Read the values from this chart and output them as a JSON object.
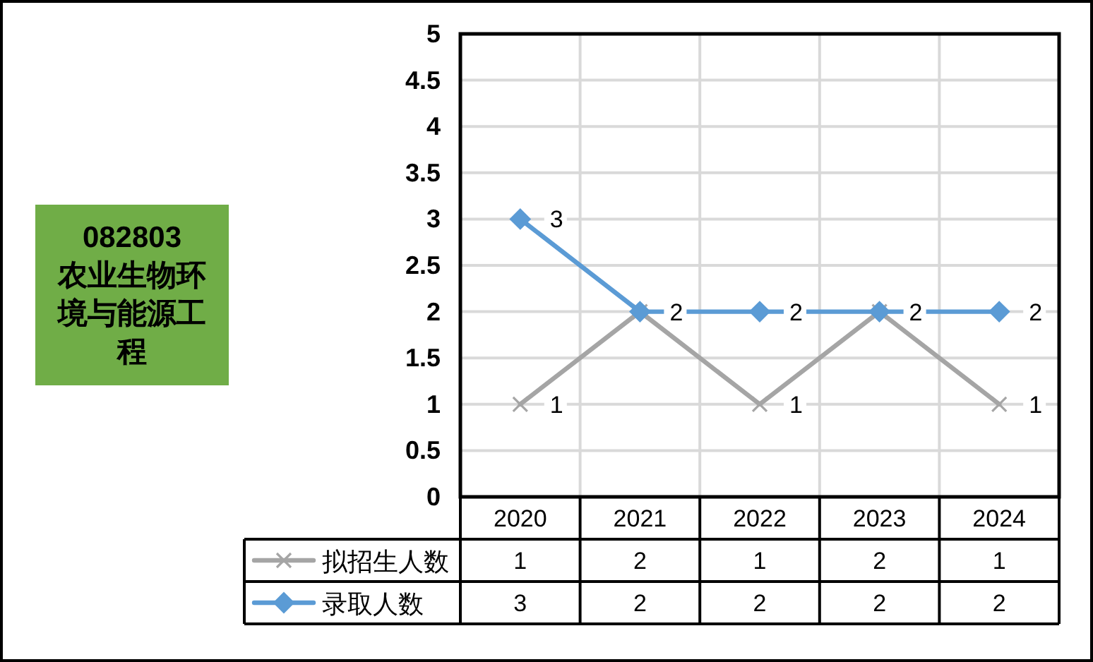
{
  "chart_data": {
    "type": "line",
    "title": "082803",
    "subtitle": "农业生物环境与能源工程",
    "categories": [
      "2020",
      "2021",
      "2022",
      "2023",
      "2024"
    ],
    "series": [
      {
        "name": "拟招生人数",
        "color": "#a5a5a5",
        "marker": "cross",
        "values": [
          1,
          2,
          1,
          2,
          1
        ]
      },
      {
        "name": "录取人数",
        "color": "#5b9bd5",
        "marker": "diamond",
        "values": [
          3,
          2,
          2,
          2,
          2
        ]
      }
    ],
    "ylim": [
      0,
      5
    ],
    "yticks": [
      0,
      0.5,
      1,
      1.5,
      2,
      2.5,
      3,
      3.5,
      4,
      4.5,
      5
    ],
    "annotations": [
      {
        "text": "1",
        "x": "2020",
        "y": 1
      },
      {
        "text": "1",
        "x": "2022",
        "y": 1
      },
      {
        "text": "1",
        "x": "2024",
        "y": 1
      },
      {
        "text": "3",
        "x": "2020",
        "y": 3
      },
      {
        "text": "2",
        "x": "2021",
        "y": 2
      },
      {
        "text": "2",
        "x": "2022",
        "y": 2
      },
      {
        "text": "2",
        "x": "2023",
        "y": 2
      },
      {
        "text": "2",
        "x": "2024",
        "y": 2
      }
    ],
    "grid": true,
    "data_labels": true,
    "legend": "bottom"
  }
}
